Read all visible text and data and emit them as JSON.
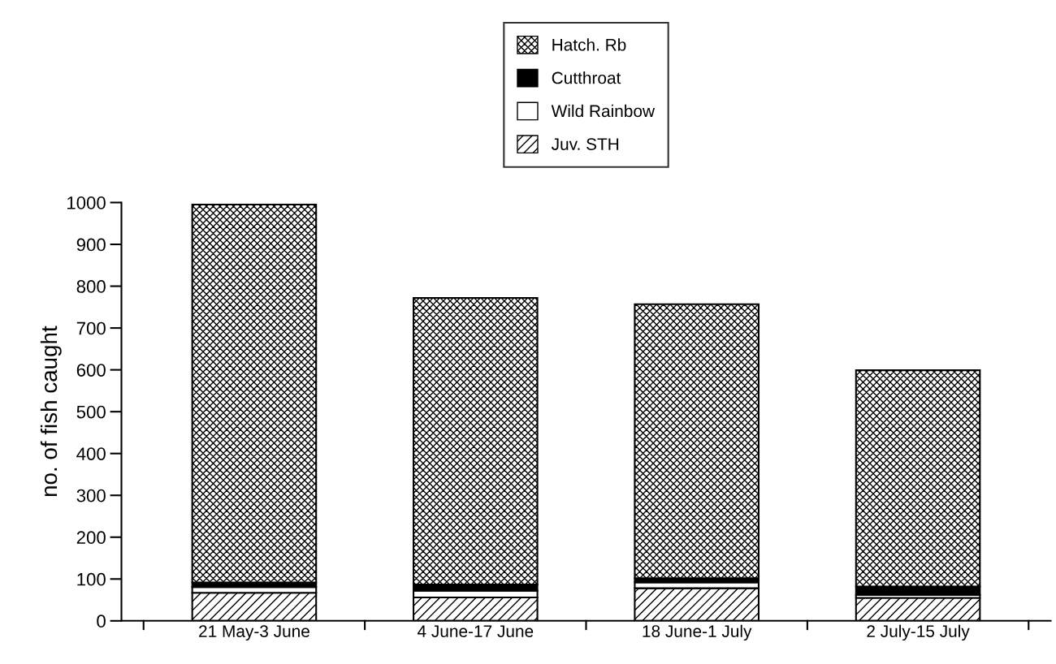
{
  "chart_data": {
    "type": "bar",
    "stacked": true,
    "ylabel": "no. of fish caught",
    "categories": [
      "21 May-3 June",
      "4 June-17 June",
      "18 June-1 July",
      "2 July-15 July"
    ],
    "series": [
      {
        "name": "Juv. STH",
        "color": "#000000",
        "values": [
          67,
          56,
          78,
          55
        ]
      },
      {
        "name": "Wild Rainbow",
        "color": "#ffffff",
        "values": [
          14,
          16,
          14,
          7
        ]
      },
      {
        "name": "Cutthroat",
        "color": "#000000",
        "values": [
          11,
          15,
          10,
          20
        ]
      },
      {
        "name": "Hatch. Rb",
        "color": "#000000",
        "values": [
          903,
          685,
          655,
          517
        ]
      }
    ],
    "ylim": [
      0,
      1000
    ],
    "yticks": [
      0,
      100,
      200,
      300,
      400,
      500,
      600,
      700,
      800,
      900,
      1000
    ],
    "grid": false,
    "legend": "top"
  }
}
